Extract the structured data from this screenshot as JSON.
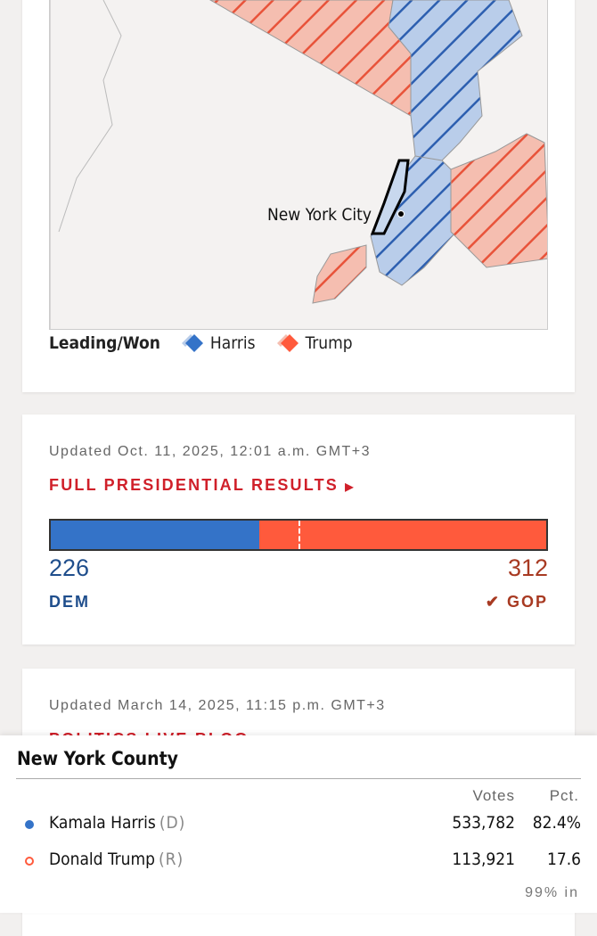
{
  "colors": {
    "dem": "#3473c8",
    "gop": "#ff5a3c",
    "link": "#d0202a",
    "dem_text": "#1f4e8c",
    "gop_text": "#a83a22"
  },
  "map": {
    "city_label": "New York City",
    "legend_title": "Leading/Won",
    "legend": [
      {
        "label": "Harris",
        "icon": "diamond-hatch-icon"
      },
      {
        "label": "Trump",
        "icon": "diamond-hatch-icon"
      }
    ]
  },
  "results": {
    "updated": "Updated Oct. 11, 2025, 12:01 a.m. GMT+3",
    "link": "FULL PRESIDENTIAL RESULTS",
    "dem_votes": "226",
    "gop_votes": "312",
    "dem_label": "DEM",
    "gop_label": "GOP",
    "dem_ev": 226,
    "gop_ev": 312,
    "winner": "GOP"
  },
  "blog": {
    "updated": "Updated March 14, 2025, 11:15 p.m. GMT+3",
    "link": "POLITICS LIVE BLOG"
  },
  "county": {
    "title": "New York County",
    "col_votes": "Votes",
    "col_pct": "Pct.",
    "rows": [
      {
        "name": "Kamala Harris",
        "party": "(D)",
        "votes": "533,782",
        "pct": "82.4%",
        "leading": true
      },
      {
        "name": "Donald Trump",
        "party": "(R)",
        "votes": "113,921",
        "pct": "17.6",
        "leading": false
      }
    ],
    "reporting": "99% in"
  }
}
